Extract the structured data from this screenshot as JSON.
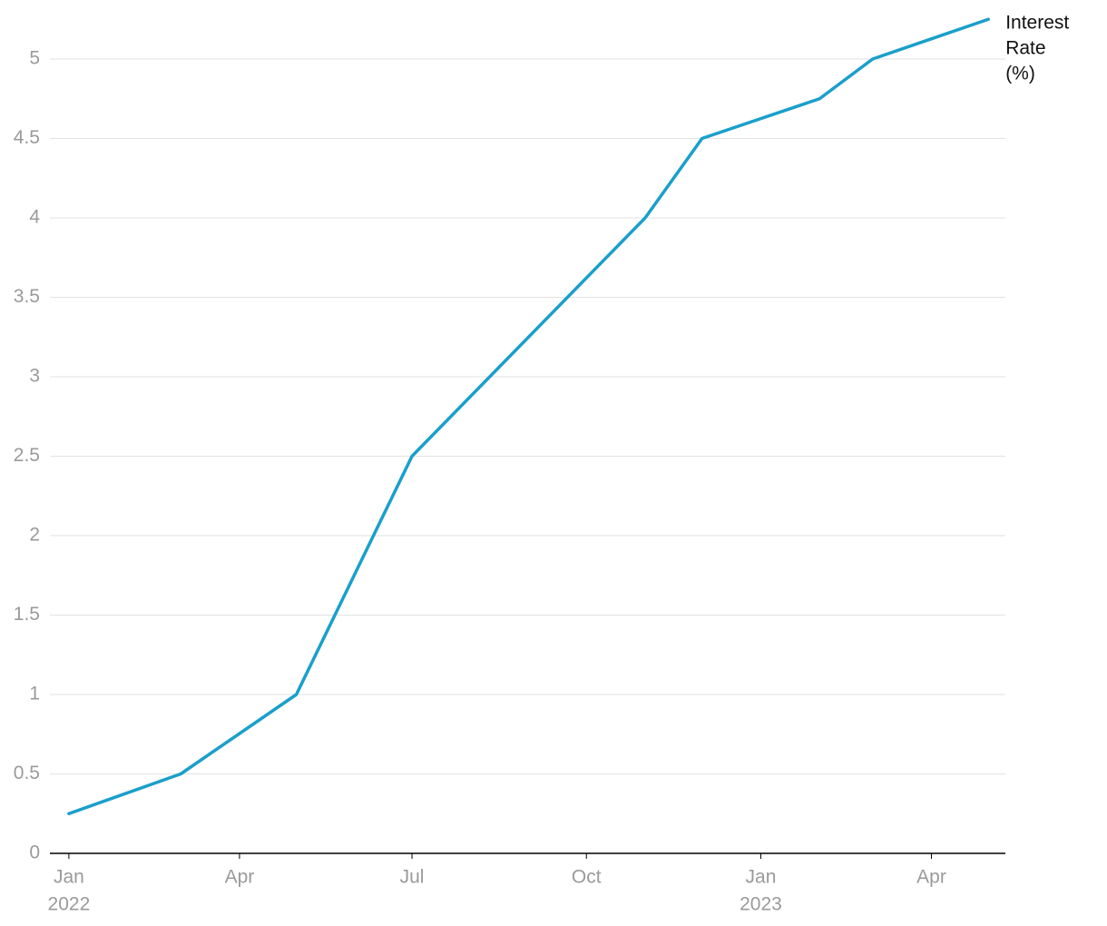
{
  "chart_data": {
    "type": "line",
    "x": [
      "2022-01",
      "2022-03",
      "2022-05",
      "2022-07",
      "2022-11",
      "2022-12",
      "2023-02",
      "2023-03",
      "2023-05"
    ],
    "series": [
      {
        "name": "Interest Rate (%)",
        "color": "#1a9fcb",
        "values": [
          0.25,
          0.5,
          1,
          2.5,
          4,
          4.5,
          4.75,
          5,
          5.25
        ]
      }
    ],
    "xlim": [
      "2021-12-22",
      "2023-05-10"
    ],
    "xticks": [
      {
        "value": "2022-01",
        "label": "Jan",
        "year": "2022"
      },
      {
        "value": "2022-04",
        "label": "Apr"
      },
      {
        "value": "2022-07",
        "label": "Jul"
      },
      {
        "value": "2022-10",
        "label": "Oct"
      },
      {
        "value": "2023-01",
        "label": "Jan",
        "year": "2023"
      },
      {
        "value": "2023-04",
        "label": "Apr"
      }
    ],
    "ylim": [
      0,
      5.25
    ],
    "yticks": [
      0,
      0.5,
      1,
      1.5,
      2,
      2.5,
      3,
      3.5,
      4,
      4.5,
      5
    ],
    "grid": true
  }
}
